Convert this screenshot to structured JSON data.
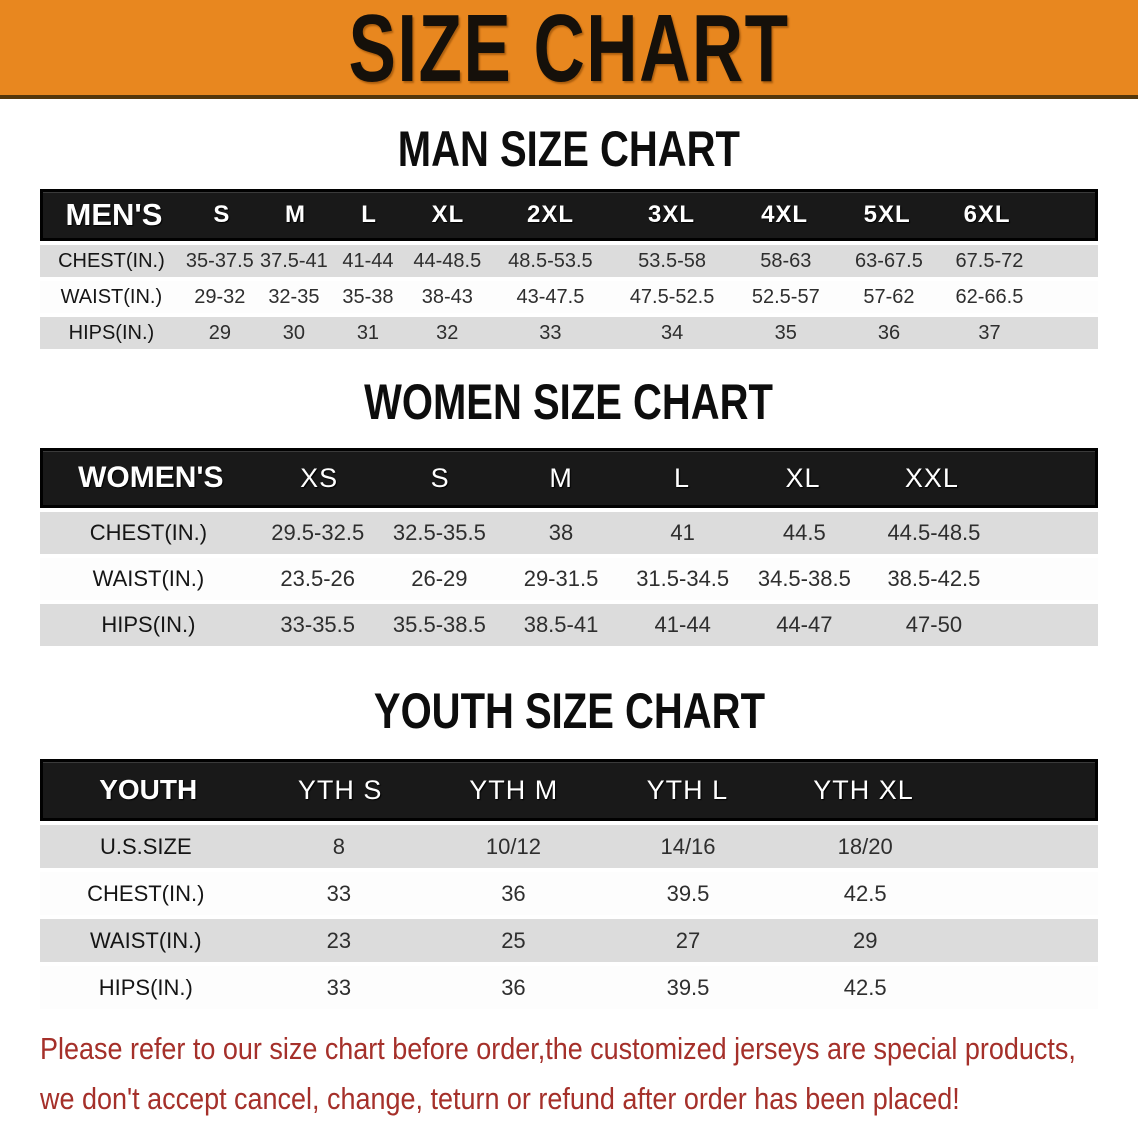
{
  "banner": {
    "title": "SIZE CHART",
    "bg_color": "#e8871f",
    "border_color": "#54370b",
    "text_color": "#15100a"
  },
  "sections": {
    "men": {
      "heading": "MAN SIZE CHART"
    },
    "women": {
      "heading": "WOMEN SIZE CHART"
    },
    "youth": {
      "heading": "YOUTH SIZE CHART"
    }
  },
  "tables": {
    "men": {
      "group_label": "MEN'S",
      "columns": [
        "S",
        "M",
        "L",
        "XL",
        "2XL",
        "3XL",
        "4XL",
        "5XL",
        "6XL"
      ],
      "rows": [
        {
          "label": "CHEST(IN.)",
          "values": [
            "35-37.5",
            "37.5-41",
            "41-44",
            "44-48.5",
            "48.5-53.5",
            "53.5-58",
            "58-63",
            "63-67.5",
            "67.5-72"
          ]
        },
        {
          "label": "WAIST(IN.)",
          "values": [
            "29-32",
            "32-35",
            "35-38",
            "38-43",
            "43-47.5",
            "47.5-52.5",
            "52.5-57",
            "57-62",
            "62-66.5"
          ]
        },
        {
          "label": "HIPS(IN.)",
          "values": [
            "29",
            "30",
            "31",
            "32",
            "33",
            "34",
            "35",
            "36",
            "37"
          ]
        }
      ]
    },
    "women": {
      "group_label": "WOMEN'S",
      "columns": [
        "XS",
        "S",
        "M",
        "L",
        "XL",
        "XXL"
      ],
      "rows": [
        {
          "label": "CHEST(IN.)",
          "values": [
            "29.5-32.5",
            "32.5-35.5",
            "38",
            "41",
            "44.5",
            "44.5-48.5"
          ]
        },
        {
          "label": "WAIST(IN.)",
          "values": [
            "23.5-26",
            "26-29",
            "29-31.5",
            "31.5-34.5",
            "34.5-38.5",
            "38.5-42.5"
          ]
        },
        {
          "label": "HIPS(IN.)",
          "values": [
            "33-35.5",
            "35.5-38.5",
            "38.5-41",
            "41-44",
            "44-47",
            "47-50"
          ]
        }
      ]
    },
    "youth": {
      "group_label": "YOUTH",
      "columns": [
        "YTH S",
        "YTH M",
        "YTH L",
        "YTH XL"
      ],
      "rows": [
        {
          "label": "U.S.SIZE",
          "values": [
            "8",
            "10/12",
            "14/16",
            "18/20"
          ]
        },
        {
          "label": "CHEST(IN.)",
          "values": [
            "33",
            "36",
            "39.5",
            "42.5"
          ]
        },
        {
          "label": "WAIST(IN.)",
          "values": [
            "23",
            "25",
            "27",
            "29"
          ]
        },
        {
          "label": "HIPS(IN.)",
          "values": [
            "33",
            "36",
            "39.5",
            "42.5"
          ]
        }
      ]
    }
  },
  "colors": {
    "table_header_bg": "#191919",
    "row_stripe_gray": "#dcdcdc",
    "note_red": "#a5302a"
  },
  "footer": {
    "lines": [
      "Please refer to our size chart before order,the customized jerseys are special products,",
      "we don't accept cancel, change, teturn or refund after order has been placed!"
    ]
  }
}
